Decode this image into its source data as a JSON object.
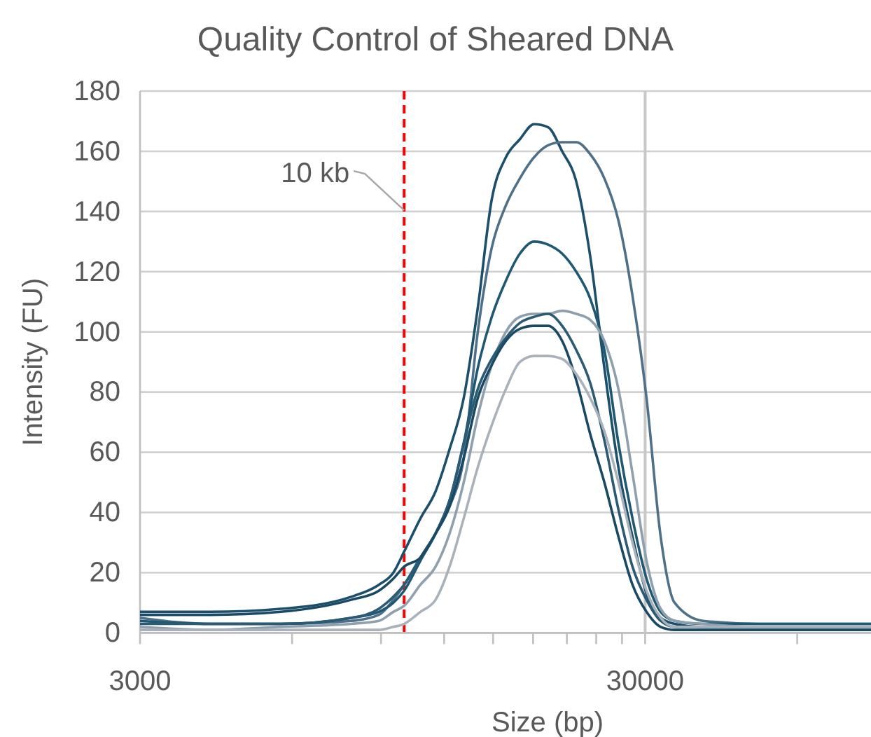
{
  "chart_data": {
    "type": "line",
    "title": "Quality Control of Sheared DNA",
    "xlabel": "Size (bp)",
    "ylabel": "Intensity (FU)",
    "log": "x",
    "grid": "y",
    "line_style": "solid",
    "marker": "none",
    "x": [
      3000,
      4134,
      5699,
      7855,
      8912,
      9519,
      10000,
      10770,
      11540,
      12300,
      13120,
      13990,
      14910,
      15900,
      16950,
      18080,
      19270,
      20550,
      21910,
      23360,
      24910,
      26560,
      28320,
      30190,
      32200,
      34320,
      39030,
      50430,
      65200,
      84000
    ],
    "xlim": [
      3000,
      84000
    ],
    "xticks": [
      3000,
      {
        "value": 6000,
        "label": null
      },
      {
        "value": 9000,
        "label": null
      },
      {
        "value": 12000,
        "label": null
      },
      {
        "value": 15000,
        "label": null
      },
      {
        "value": 18000,
        "label": null
      },
      {
        "value": 21000,
        "label": null
      },
      {
        "value": 24000,
        "label": null
      },
      {
        "value": 27000,
        "label": null
      },
      30000,
      {
        "value": 60000,
        "label": null
      }
    ],
    "ylim": [
      0,
      180
    ],
    "yticks": [
      0,
      20,
      40,
      60,
      80,
      100,
      120,
      140,
      160,
      180
    ],
    "series": [
      {
        "color": "#1b4f6b",
        "values": [
          7,
          7,
          8,
          12,
          16,
          20,
          27,
          38,
          47,
          61,
          78,
          108,
          144,
          158,
          164,
          169,
          168,
          160,
          150,
          125,
          88,
          55,
          32,
          13,
          5,
          3,
          2,
          2,
          2,
          2
        ]
      },
      {
        "color": "#4f7089",
        "values": [
          5,
          3,
          3,
          4,
          6,
          11,
          16,
          25,
          33,
          42,
          58,
          100,
          128,
          142,
          151,
          158,
          162,
          163,
          163,
          159,
          151,
          137,
          112,
          78,
          32,
          10,
          4,
          3,
          3,
          3
        ]
      },
      {
        "color": "#1f5872",
        "values": [
          4,
          3,
          3,
          5,
          7,
          10,
          14,
          24,
          33,
          44,
          63,
          88,
          105,
          117,
          126,
          130,
          129,
          126,
          120,
          111,
          94,
          63,
          38,
          18,
          7,
          4,
          3,
          3,
          3,
          3
        ]
      },
      {
        "color": "#8e9fad",
        "values": [
          2,
          1,
          2,
          3,
          4,
          7,
          9,
          16,
          22,
          33,
          50,
          72,
          89,
          100,
          105,
          106,
          106,
          107,
          106,
          104,
          97,
          81,
          53,
          24,
          8,
          4,
          3,
          2,
          2,
          2
        ]
      },
      {
        "color": "#2a5a74",
        "values": [
          3,
          3,
          3,
          5,
          8,
          12,
          16,
          25,
          33,
          44,
          63,
          81,
          91,
          98,
          103,
          105,
          106,
          102,
          94,
          83,
          64,
          41,
          22,
          11,
          4,
          2,
          2,
          2,
          2,
          2
        ]
      },
      {
        "color": "#1a4a63",
        "values": [
          6,
          6,
          7,
          11,
          14,
          18,
          22,
          25,
          33,
          42,
          58,
          78,
          89,
          97,
          101,
          102,
          102,
          97,
          84,
          66,
          50,
          32,
          16,
          7,
          2,
          1,
          1,
          1,
          1,
          1
        ]
      },
      {
        "color": "#a9b2ba",
        "values": [
          1,
          1,
          1,
          1,
          1,
          2,
          3,
          7,
          11,
          22,
          38,
          55,
          69,
          81,
          90,
          92,
          92,
          91,
          86,
          78,
          67,
          50,
          30,
          14,
          5,
          2,
          2,
          2,
          2,
          2
        ]
      }
    ],
    "ref_lines": [
      {
        "axis": "x",
        "value": 30000,
        "color": "#c8c8c8",
        "line_style": "solid"
      },
      {
        "axis": "x",
        "value": 10000,
        "label": "10 kb",
        "color": "#ff0000",
        "line_style": "dashed"
      }
    ]
  }
}
